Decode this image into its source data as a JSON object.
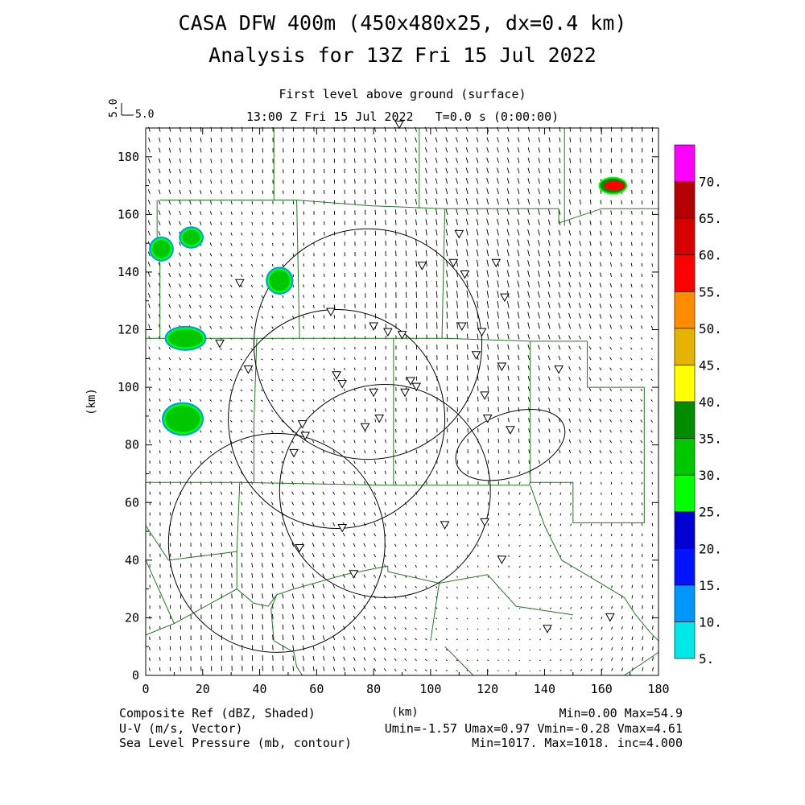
{
  "header": {
    "title_line1": "CASA DFW 400m (450x480x25, dx=0.4 km)",
    "title_line2": "Analysis for 13Z Fri 15 Jul 2022",
    "subtitle_line1": "First level above ground (surface)",
    "subtitle_line2": "13:00 Z Fri 15 Jul 2022   T=0.0 s (0:00:00)",
    "vector_ref_label": "5.0",
    "vector_ref_label_rot": "5.0"
  },
  "footer": {
    "field1": "Composite Ref (dBZ, Shaded)",
    "field2": "U-V (m/s, Vector)",
    "field3": "Sea Level Pressure (mb, contour)",
    "xunit": "(km)",
    "stats1": "Min=0.00 Max=54.9",
    "stats2": "Umin=-1.57 Umax=0.97 Vmin=-0.28 Vmax=4.61",
    "stats3": "Min=1017. Max=1018. inc=4.000"
  },
  "chart_data": {
    "type": "heatmap",
    "xlabel": "",
    "ylabel": "(km)",
    "xlim": [
      0,
      180
    ],
    "ylim": [
      0,
      190
    ],
    "x_ticks": [
      "0",
      "20",
      "40",
      "60",
      "80",
      "100",
      "120",
      "140",
      "160",
      "180"
    ],
    "y_ticks": [
      "0",
      "20",
      "40",
      "60",
      "80",
      "100",
      "120",
      "140",
      "160",
      "180"
    ],
    "colorbar": {
      "levels": [
        "5.",
        "10.",
        "15.",
        "20.",
        "25.",
        "30.",
        "35.",
        "40.",
        "45.",
        "50.",
        "55.",
        "60.",
        "65.",
        "70."
      ],
      "colors": [
        "#00e8e8",
        "#0096ff",
        "#0014ff",
        "#0000d0",
        "#00ff00",
        "#00c800",
        "#008c00",
        "#ffff00",
        "#e6b400",
        "#ff8c00",
        "#ff0000",
        "#d70000",
        "#b40000",
        "#ff00ff"
      ]
    },
    "reflectivity_cells": [
      {
        "x": 5.5,
        "y": 148,
        "rx": 3.5,
        "ry": 3.5,
        "max_dbz": 30
      },
      {
        "x": 16,
        "y": 152,
        "rx": 3.5,
        "ry": 3,
        "max_dbz": 30
      },
      {
        "x": 47,
        "y": 137,
        "rx": 4,
        "ry": 4,
        "max_dbz": 30
      },
      {
        "x": 14,
        "y": 117,
        "rx": 6.5,
        "ry": 3.5,
        "max_dbz": 30
      },
      {
        "x": 13,
        "y": 89,
        "rx": 6.5,
        "ry": 5,
        "max_dbz": 30
      },
      {
        "x": 164,
        "y": 170,
        "rx": 4.5,
        "ry": 2.5,
        "max_dbz": 54.9
      }
    ],
    "radar_rings": [
      {
        "x": 78,
        "y": 115,
        "r": 40
      },
      {
        "x": 67,
        "y": 89,
        "r": 38
      },
      {
        "x": 84,
        "y": 64,
        "r": 37
      },
      {
        "x": 46,
        "y": 46,
        "r": 38
      }
    ],
    "slp_contour_ellipse": {
      "x": 128,
      "y": 80,
      "rx": 20,
      "ry": 11
    },
    "stations": [
      [
        89,
        191
      ],
      [
        110,
        153
      ],
      [
        97,
        142
      ],
      [
        108,
        143
      ],
      [
        112,
        139
      ],
      [
        123,
        143
      ],
      [
        126,
        131
      ],
      [
        33,
        136
      ],
      [
        65,
        126
      ],
      [
        80,
        121
      ],
      [
        85,
        119
      ],
      [
        90,
        118
      ],
      [
        111,
        121
      ],
      [
        118,
        119
      ],
      [
        26,
        115
      ],
      [
        116,
        111
      ],
      [
        125,
        107
      ],
      [
        145,
        106
      ],
      [
        36,
        106
      ],
      [
        67,
        104
      ],
      [
        69,
        101
      ],
      [
        93,
        102
      ],
      [
        80,
        98
      ],
      [
        91,
        98
      ],
      [
        95,
        100
      ],
      [
        119,
        97
      ],
      [
        120,
        89
      ],
      [
        128,
        85
      ],
      [
        82,
        89
      ],
      [
        55,
        87
      ],
      [
        56,
        83
      ],
      [
        52,
        77
      ],
      [
        77,
        86
      ],
      [
        69,
        51
      ],
      [
        105,
        52
      ],
      [
        119,
        53
      ],
      [
        54,
        44
      ],
      [
        125,
        40
      ],
      [
        73,
        35
      ],
      [
        141,
        16
      ],
      [
        163,
        20
      ]
    ],
    "wind": {
      "u_min": -1.57,
      "u_max": 0.97,
      "v_min": -0.28,
      "v_max": 4.61,
      "ref_speed": 5.0
    },
    "grid": false
  }
}
